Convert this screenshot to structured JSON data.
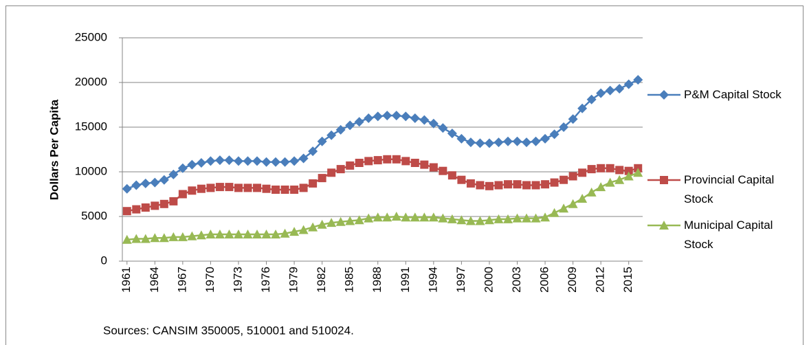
{
  "chart_data": {
    "type": "line",
    "y_label": "Dollars Per Capita",
    "source": "Sources: CANSIM 350005,  510001 and 510024.",
    "x": [
      1961,
      1962,
      1963,
      1964,
      1965,
      1966,
      1967,
      1968,
      1969,
      1970,
      1971,
      1972,
      1973,
      1974,
      1975,
      1976,
      1977,
      1978,
      1979,
      1980,
      1981,
      1982,
      1983,
      1984,
      1985,
      1986,
      1987,
      1988,
      1989,
      1990,
      1991,
      1992,
      1993,
      1994,
      1995,
      1996,
      1997,
      1998,
      1999,
      2000,
      2001,
      2002,
      2003,
      2004,
      2005,
      2006,
      2007,
      2008,
      2009,
      2010,
      2011,
      2012,
      2013,
      2014,
      2015,
      2016
    ],
    "xlim": [
      1960.5,
      2016.5
    ],
    "xticks": [
      1961,
      1964,
      1967,
      1970,
      1973,
      1976,
      1979,
      1982,
      1985,
      1988,
      1991,
      1994,
      1997,
      2000,
      2003,
      2006,
      2009,
      2012,
      2015
    ],
    "ylim": [
      0,
      25000
    ],
    "yticks": [
      0,
      5000,
      10000,
      15000,
      20000,
      25000
    ],
    "grid": true,
    "legend": "right",
    "series": [
      {
        "name": "P&M Capital Stock",
        "color": "#4a7ebb",
        "marker": "diamond",
        "values": [
          8100,
          8500,
          8700,
          8800,
          9100,
          9700,
          10400,
          10800,
          11000,
          11200,
          11300,
          11300,
          11200,
          11200,
          11200,
          11100,
          11100,
          11100,
          11200,
          11500,
          12300,
          13400,
          14100,
          14700,
          15200,
          15600,
          16000,
          16200,
          16300,
          16300,
          16200,
          16000,
          15800,
          15400,
          14900,
          14300,
          13700,
          13300,
          13200,
          13200,
          13300,
          13400,
          13400,
          13300,
          13400,
          13700,
          14200,
          15000,
          15900,
          17100,
          18100,
          18800,
          19100,
          19300,
          19800,
          20300
        ]
      },
      {
        "name": "Provincial Capital Stock",
        "color": "#be4b48",
        "marker": "square",
        "values": [
          5600,
          5800,
          6000,
          6200,
          6400,
          6700,
          7500,
          7900,
          8100,
          8200,
          8300,
          8300,
          8200,
          8200,
          8200,
          8100,
          8000,
          8000,
          8000,
          8200,
          8700,
          9300,
          9900,
          10300,
          10700,
          11000,
          11200,
          11300,
          11400,
          11400,
          11200,
          11000,
          10800,
          10500,
          10100,
          9600,
          9100,
          8700,
          8500,
          8400,
          8500,
          8600,
          8600,
          8500,
          8500,
          8600,
          8800,
          9100,
          9500,
          9900,
          10300,
          10400,
          10400,
          10200,
          10100,
          10400
        ]
      },
      {
        "name": "Municipal Capital Stock",
        "color": "#98b954",
        "marker": "triangle",
        "values": [
          2400,
          2500,
          2500,
          2600,
          2600,
          2700,
          2700,
          2800,
          2900,
          3000,
          3000,
          3000,
          3000,
          3000,
          3000,
          3000,
          3000,
          3100,
          3300,
          3500,
          3800,
          4100,
          4300,
          4400,
          4500,
          4600,
          4800,
          4900,
          4900,
          5000,
          4900,
          4900,
          4900,
          4900,
          4800,
          4700,
          4600,
          4500,
          4500,
          4600,
          4700,
          4700,
          4800,
          4800,
          4800,
          4900,
          5400,
          5900,
          6400,
          7000,
          7700,
          8300,
          8800,
          9100,
          9500,
          9900
        ]
      }
    ]
  }
}
